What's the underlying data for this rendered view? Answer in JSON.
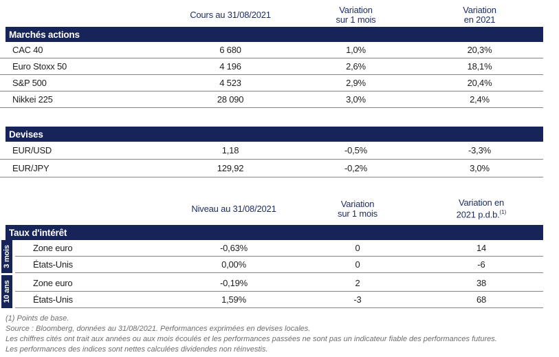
{
  "colors": {
    "navy": "#16245a",
    "header_text": "#1c2b5f",
    "body_text": "#1d1d1b",
    "divider": "#848484",
    "footnote": "#6e6e6e"
  },
  "equities_table": {
    "col_headers": {
      "price": "Cours au 31/08/2021",
      "var_month_l1": "Variation",
      "var_month_l2": "sur 1 mois",
      "var_ytd_l1": "Variation",
      "var_ytd_l2": "en 2021"
    },
    "section_title": "Marchés actions",
    "rows": [
      {
        "label": "CAC 40",
        "price": "6 680",
        "var_month": "1,0%",
        "var_ytd": "20,3%"
      },
      {
        "label": "Euro Stoxx 50",
        "price": "4 196",
        "var_month": "2,6%",
        "var_ytd": "18,1%"
      },
      {
        "label": "S&P 500",
        "price": "4 523",
        "var_month": "2,9%",
        "var_ytd": "20,4%"
      },
      {
        "label": "Nikkei 225",
        "price": "28 090",
        "var_month": "3,0%",
        "var_ytd": "2,4%"
      }
    ]
  },
  "currencies_table": {
    "section_title": "Devises",
    "rows": [
      {
        "label": "EUR/USD",
        "price": "1,18",
        "var_month": "-0,5%",
        "var_ytd": "-3,3%"
      },
      {
        "label": "EUR/JPY",
        "price": "129,92",
        "var_month": "-0,2%",
        "var_ytd": "3,0%"
      }
    ]
  },
  "rates_table": {
    "col_headers": {
      "level": "Niveau au 31/08/2021",
      "var_month_l1": "Variation",
      "var_month_l2": "sur 1 mois",
      "var_ytd_l1": "Variation en",
      "var_ytd_l2": "2021 p.d.b.",
      "var_ytd_sup": "(1)"
    },
    "section_title": "Taux d'intérêt",
    "groups": [
      {
        "label": "3 mois",
        "rows": [
          {
            "label": "Zone euro",
            "level": "-0,63%",
            "var_month": "0",
            "var_ytd": "14"
          },
          {
            "label": "États-Unis",
            "level": "0,00%",
            "var_month": "0",
            "var_ytd": "-6"
          }
        ]
      },
      {
        "label": "10 ans",
        "rows": [
          {
            "label": "Zone euro",
            "level": "-0,19%",
            "var_month": "2",
            "var_ytd": "38"
          },
          {
            "label": "États-Unis",
            "level": "1,59%",
            "var_month": "-3",
            "var_ytd": "68"
          }
        ]
      }
    ]
  },
  "footnotes": [
    "(1) Points de base.",
    "Source : Bloomberg, données au 31/08/2021. Performances exprimées en devises locales.",
    "Les chiffres cités ont trait aux années ou aux mois écoulés et les performances passées ne sont pas un indicateur fiable des performances futures.",
    "Les performances des indices sont nettes calculées dividendes non réinvestis."
  ]
}
